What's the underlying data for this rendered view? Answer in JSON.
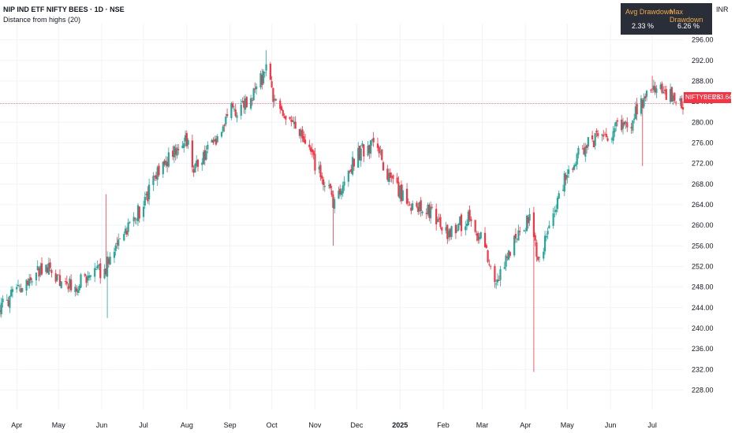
{
  "header": {
    "title": "NIP IND ETF NIFTY BEES · 1D · NSE",
    "subtitle": "Distance from highs (20)",
    "currency": "INR"
  },
  "drawdown": {
    "avg_label": "Avg Drawdown",
    "max_label": "Max Drawdown",
    "avg_value": "2.33 %",
    "max_value": "6.26 %"
  },
  "price_tag": {
    "symbol": "NIFTYBEES",
    "value": "283.64"
  },
  "colors": {
    "up": "#26a69a",
    "down": "#f23645",
    "grid": "#f0f3fa"
  },
  "chart_data": {
    "type": "candlestick",
    "ylim": [
      226,
      298
    ],
    "last_price": 283.64,
    "y_ticks": [
      228,
      232,
      236,
      240,
      244,
      248,
      252,
      256,
      260,
      264,
      268,
      272,
      276,
      280,
      284,
      288,
      292,
      296
    ],
    "y_tick_labels": [
      "228.00",
      "232.00",
      "236.00",
      "240.00",
      "244.00",
      "248.00",
      "252.00",
      "256.00",
      "260.00",
      "264.00",
      "268.00",
      "272.00",
      "276.00",
      "280.00",
      "284.00",
      "288.00",
      "292.00",
      "296.00"
    ],
    "x_ticks": [
      "2024-04-01",
      "2024-05-01",
      "2024-06-01",
      "2024-07-01",
      "2024-08-01",
      "2024-09-01",
      "2024-10-01",
      "2024-11-01",
      "2024-12-01",
      "2025-01-01",
      "2025-02-01",
      "2025-03-01",
      "2025-04-01",
      "2025-05-01",
      "2025-06-01",
      "2025-07-01"
    ],
    "x_tick_labels": [
      "Apr",
      "May",
      "Jun",
      "Jul",
      "Aug",
      "Sep",
      "Oct",
      "Nov",
      "Dec",
      "2025",
      "Feb",
      "Mar",
      "Apr",
      "May",
      "Jun",
      "Jul"
    ],
    "bold_x_labels": [
      "2025"
    ],
    "x_range": [
      "2024-03-20",
      "2025-07-23"
    ],
    "path": [
      [
        "2024-03-20",
        244
      ],
      [
        "2024-04-01",
        247
      ],
      [
        "2024-04-20",
        252
      ],
      [
        "2024-05-10",
        248
      ],
      [
        "2024-05-25",
        250
      ],
      [
        "2024-06-04",
        252
      ],
      [
        "2024-06-15",
        258
      ],
      [
        "2024-07-01",
        264
      ],
      [
        "2024-07-15",
        272
      ],
      [
        "2024-08-02",
        277
      ],
      [
        "2024-08-06",
        271
      ],
      [
        "2024-08-20",
        276
      ],
      [
        "2024-09-01",
        282
      ],
      [
        "2024-09-15",
        284
      ],
      [
        "2024-09-27",
        290
      ],
      [
        "2024-10-03",
        284
      ],
      [
        "2024-10-20",
        278
      ],
      [
        "2024-11-01",
        272
      ],
      [
        "2024-11-15",
        264
      ],
      [
        "2024-12-01",
        274
      ],
      [
        "2024-12-15",
        276
      ],
      [
        "2024-12-25",
        268
      ],
      [
        "2025-01-10",
        264
      ],
      [
        "2025-01-25",
        262
      ],
      [
        "2025-02-05",
        258
      ],
      [
        "2025-02-20",
        262
      ],
      [
        "2025-03-05",
        254
      ],
      [
        "2025-03-10",
        248
      ],
      [
        "2025-03-25",
        258
      ],
      [
        "2025-04-05",
        262
      ],
      [
        "2025-04-10",
        252
      ],
      [
        "2025-04-20",
        262
      ],
      [
        "2025-05-01",
        270
      ],
      [
        "2025-05-15",
        276
      ],
      [
        "2025-06-01",
        278
      ],
      [
        "2025-06-15",
        280
      ],
      [
        "2025-06-30",
        286
      ],
      [
        "2025-07-10",
        286
      ],
      [
        "2025-07-23",
        283.6
      ]
    ],
    "spikes": [
      [
        "2024-06-05",
        242
      ],
      [
        "2024-06-04",
        266
      ],
      [
        "2024-11-14",
        256
      ],
      [
        "2025-04-07",
        231.5
      ],
      [
        "2024-09-27",
        294
      ],
      [
        "2025-07-01",
        289
      ],
      [
        "2025-06-24",
        271.5
      ]
    ]
  }
}
